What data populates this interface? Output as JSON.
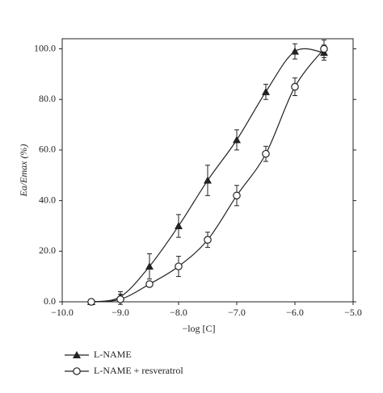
{
  "chart_data": {
    "type": "line",
    "x_label": "−log [C]",
    "y_label": "Ea/Emax (%)",
    "x": [
      -9.5,
      -9.0,
      -8.5,
      -8.0,
      -7.5,
      -7.0,
      -6.5,
      -6.0,
      -5.5
    ],
    "series": [
      {
        "name": "L-NAME",
        "color": "#222222",
        "marker": "triangle",
        "values": [
          0,
          2,
          14,
          30,
          48,
          64,
          83,
          99,
          98.5
        ],
        "errors": [
          0,
          2,
          5,
          4.5,
          6,
          4,
          3,
          3,
          3
        ]
      },
      {
        "name": "L-NAME + resveratrol",
        "color": "#222222",
        "marker": "circle",
        "values": [
          0,
          1,
          7,
          14,
          24.5,
          42,
          58.5,
          85,
          100
        ],
        "errors": [
          0,
          2,
          1,
          4,
          3,
          4,
          3,
          3.5,
          3.5
        ]
      }
    ],
    "xlim": [
      -10,
      -5
    ],
    "ylim": [
      0,
      104
    ],
    "xticks": [
      {
        "value": -10,
        "label": "−10.0"
      },
      {
        "value": -9,
        "label": "−9.0"
      },
      {
        "value": -8,
        "label": "−8.0"
      },
      {
        "value": -7,
        "label": "−7.0"
      },
      {
        "value": -6,
        "label": "−6.0"
      },
      {
        "value": -5,
        "label": "−5.0"
      }
    ],
    "yticks": [
      {
        "value": 0,
        "label": "0.0"
      },
      {
        "value": 20,
        "label": "20.0"
      },
      {
        "value": 40,
        "label": "40.0"
      },
      {
        "value": 60,
        "label": "60.0"
      },
      {
        "value": 80,
        "label": "80.0"
      },
      {
        "value": 100,
        "label": "100.0"
      }
    ]
  }
}
